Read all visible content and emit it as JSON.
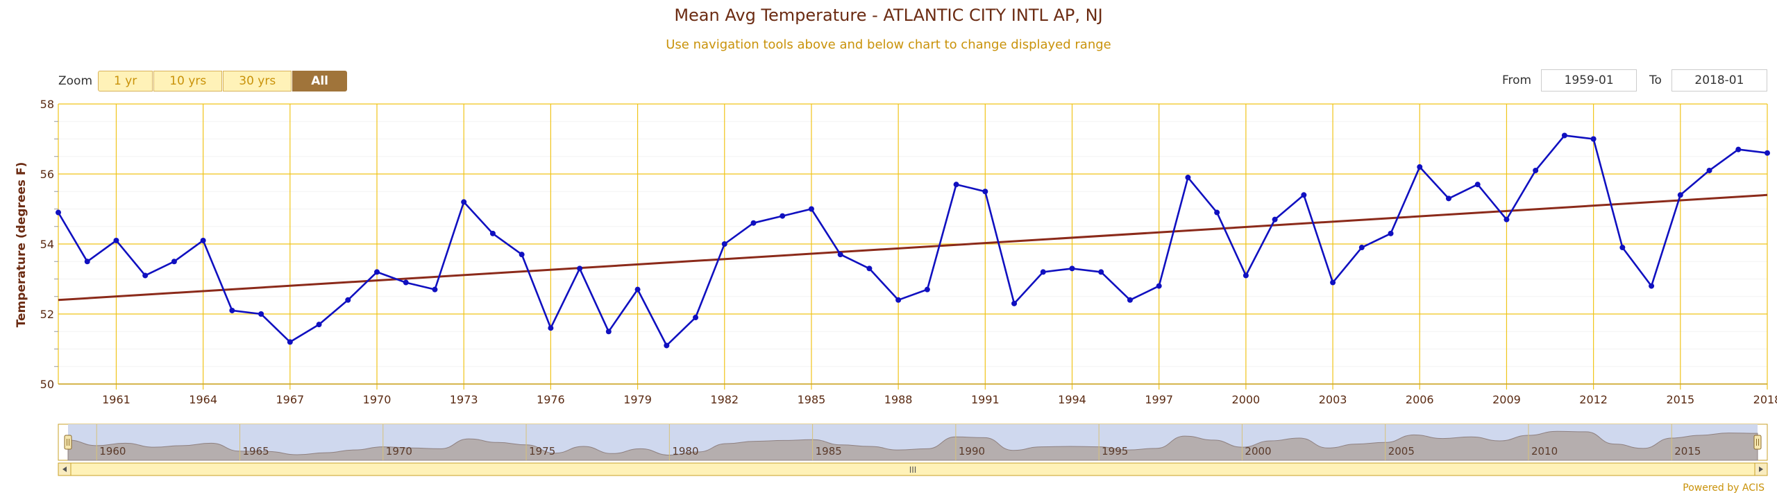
{
  "title": "Mean Avg Temperature - ATLANTIC CITY INTL AP, NJ",
  "subtitle": "Use navigation tools above and below chart to change displayed range",
  "zoom": {
    "label": "Zoom",
    "buttons": [
      {
        "label": "1 yr",
        "active": false
      },
      {
        "label": "10 yrs",
        "active": false
      },
      {
        "label": "30 yrs",
        "active": false
      },
      {
        "label": "All",
        "active": true
      }
    ]
  },
  "range": {
    "from_label": "From",
    "from_value": "1959-01",
    "to_label": "To",
    "to_value": "2018-01"
  },
  "powered_by": "Powered by ACIS",
  "navigator": {
    "scroll_grip": "III",
    "tick_labels": [
      "1960",
      "1965",
      "1970",
      "1975",
      "1980",
      "1985",
      "1990",
      "1995",
      "2000",
      "2005",
      "2010",
      "2015"
    ]
  },
  "chart_data": {
    "type": "line",
    "title": "Mean Avg Temperature - ATLANTIC CITY INTL AP, NJ",
    "ylabel": "Temperature (degrees F)",
    "xlabel": "",
    "xlim": [
      1959,
      2018
    ],
    "ylim": [
      50,
      58
    ],
    "yticks": [
      50,
      52,
      54,
      56,
      58
    ],
    "xticks": [
      1961,
      1964,
      1967,
      1970,
      1973,
      1976,
      1979,
      1982,
      1985,
      1988,
      1991,
      1994,
      1997,
      2000,
      2003,
      2006,
      2009,
      2012,
      2015,
      2018
    ],
    "grid": true,
    "colors": {
      "series": "#1010c0",
      "trend": "#8b2a1a",
      "grid": "#f0c419",
      "axis_text": "#5a2a12"
    },
    "x": [
      1959,
      1960,
      1961,
      1962,
      1963,
      1964,
      1965,
      1966,
      1967,
      1968,
      1969,
      1970,
      1971,
      1972,
      1973,
      1974,
      1975,
      1976,
      1977,
      1978,
      1979,
      1980,
      1981,
      1982,
      1983,
      1984,
      1985,
      1986,
      1987,
      1988,
      1989,
      1990,
      1991,
      1992,
      1993,
      1994,
      1995,
      1996,
      1997,
      1998,
      1999,
      2000,
      2001,
      2002,
      2003,
      2004,
      2005,
      2006,
      2007,
      2008,
      2009,
      2010,
      2011,
      2012,
      2013,
      2014,
      2015,
      2016,
      2017,
      2018
    ],
    "series": [
      {
        "values": [
          54.9,
          53.5,
          54.1,
          53.1,
          53.5,
          54.1,
          52.1,
          52.0,
          51.2,
          51.7,
          52.4,
          53.2,
          52.9,
          52.7,
          55.2,
          54.3,
          53.7,
          51.6,
          53.3,
          51.5,
          52.7,
          51.1,
          51.9,
          54.0,
          54.6,
          54.8,
          55.0,
          53.7,
          53.3,
          52.4,
          52.7,
          55.7,
          55.5,
          52.3,
          53.2,
          53.3,
          53.2,
          52.4,
          52.8,
          55.9,
          54.9,
          53.1,
          54.7,
          55.4,
          52.9,
          53.9,
          54.3,
          56.2,
          55.3,
          55.7,
          54.7,
          56.1,
          57.1,
          57.0,
          53.9,
          52.8,
          55.4,
          56.1,
          56.7,
          56.6
        ]
      }
    ],
    "trend": {
      "start": [
        1959,
        52.4
      ],
      "end": [
        2018,
        55.4
      ]
    }
  }
}
